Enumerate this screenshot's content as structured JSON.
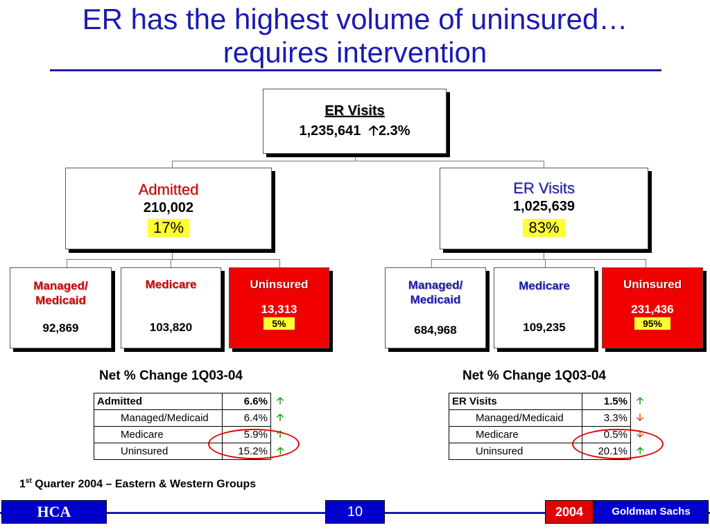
{
  "title": {
    "line1": "ER has the highest volume of uninsured…",
    "line2": "requires intervention"
  },
  "root": {
    "label": "ER Visits",
    "value": "1,235,641",
    "arrow": "up-arrow",
    "change": "2.3%"
  },
  "left": {
    "label": "Admitted",
    "value": "210,002",
    "share": "17%",
    "children": [
      {
        "label": "Managed/ Medicaid",
        "value": "92,869"
      },
      {
        "label": "Medicare",
        "value": "103,820"
      },
      {
        "label": "Uninsured",
        "value": "13,313",
        "share": "5%"
      }
    ]
  },
  "right": {
    "label": "ER Visits",
    "value": "1,025,639",
    "share": "83%",
    "children": [
      {
        "label": "Managed/ Medicaid",
        "value": "684,968"
      },
      {
        "label": "Medicare",
        "value": "109,235"
      },
      {
        "label": "Uninsured",
        "value": "231,436",
        "share": "95%"
      }
    ]
  },
  "tables": {
    "left": {
      "heading": "Net % Change 1Q03-04",
      "rows": [
        {
          "label": "Admitted",
          "value": "6.6%",
          "dir": "up"
        },
        {
          "label": "Managed/Medicaid",
          "value": "6.4%",
          "dir": "up"
        },
        {
          "label": "Medicare",
          "value": "5.9%",
          "dir": "up"
        },
        {
          "label": "Uninsured",
          "value": "15.2%",
          "dir": "up"
        }
      ]
    },
    "right": {
      "heading": "Net % Change 1Q03-04",
      "rows": [
        {
          "label": "ER Visits",
          "value": "1.5%",
          "dir": "up"
        },
        {
          "label": "Managed/Medicaid",
          "value": "3.3%",
          "dir": "down"
        },
        {
          "label": "Medicare",
          "value": "0.5%",
          "dir": "down"
        },
        {
          "label": "Uninsured",
          "value": "20.1%",
          "dir": "up"
        }
      ]
    }
  },
  "footnote": {
    "ordinal": "1",
    "suffix": "st",
    "text": " Quarter 2004 – Eastern & Western Groups"
  },
  "footer": {
    "logo": "HCA",
    "page": "10",
    "year": "2004",
    "firm": "Goldman Sachs"
  },
  "colors": {
    "title_blue": "#1a1ab3",
    "accent_red": "#e00000",
    "highlight_yellow": "#ffff33",
    "up_green": "#00a000",
    "down_orange": "#e04000"
  }
}
